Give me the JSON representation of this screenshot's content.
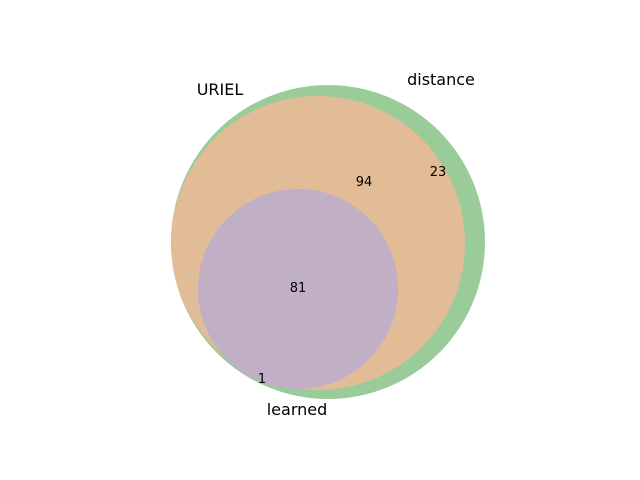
{
  "sets": [
    {
      "name": "URIEL",
      "color": "#e1bc96"
    },
    {
      "name": "distance",
      "color": "#99cc99"
    },
    {
      "name": "learned",
      "color": "#c0afc5"
    }
  ],
  "regions": {
    "distance_only": "23",
    "uriel_distance": "94",
    "all_three": "81",
    "distance_learned": "1"
  },
  "colors": {
    "uriel": "#e1bc96",
    "distance": "#99cc99",
    "learned": "#c0afc5",
    "learned_edge": "#9ec0e6",
    "background": "#ffffff"
  }
}
